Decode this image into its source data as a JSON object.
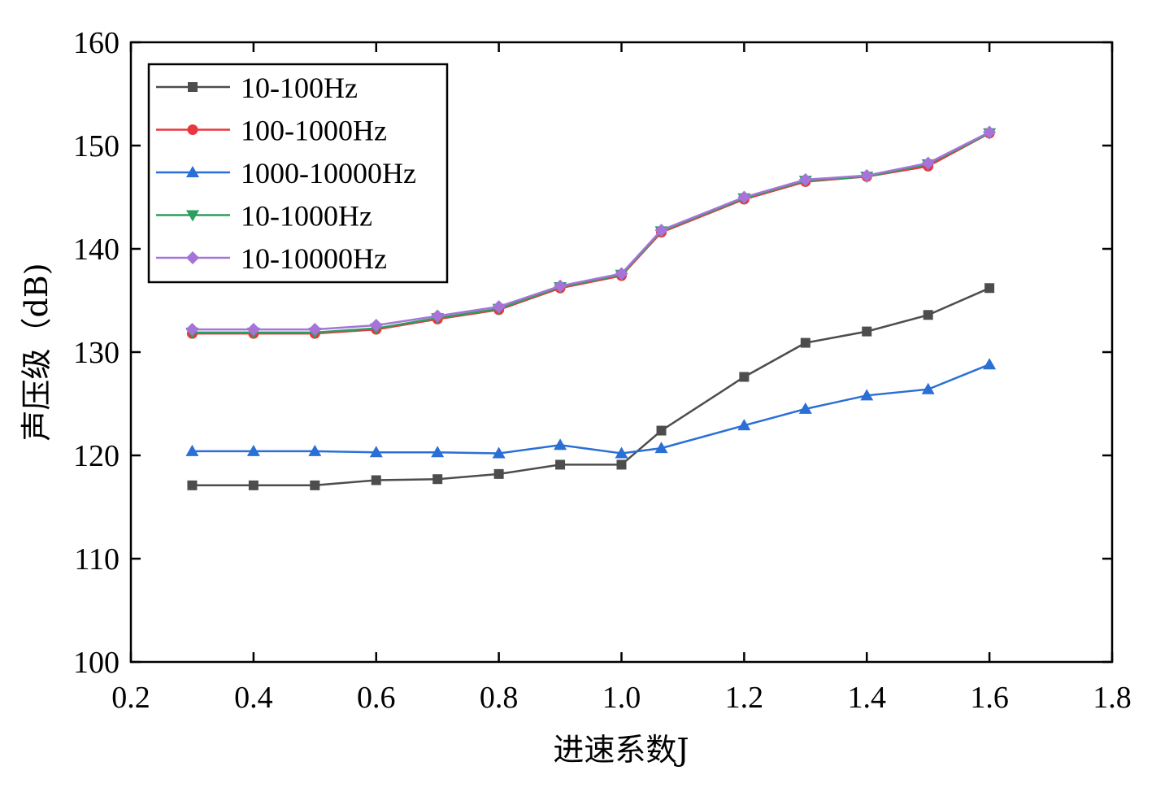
{
  "chart_data": {
    "type": "line",
    "title": "",
    "xlabel": "进速系数J",
    "ylabel": "声压级（dB)",
    "xlim": [
      0.2,
      1.8
    ],
    "ylim": [
      100,
      160
    ],
    "xticks": [
      "0.2",
      "0.4",
      "0.6",
      "0.8",
      "1.0",
      "1.2",
      "1.4",
      "1.6",
      "1.8"
    ],
    "yticks": [
      "100",
      "110",
      "120",
      "130",
      "140",
      "150",
      "160"
    ],
    "legend_position": "top-left",
    "grid": false,
    "x": [
      0.3,
      0.4,
      0.5,
      0.6,
      0.7,
      0.8,
      0.9,
      1.0,
      1.065,
      1.2,
      1.3,
      1.4,
      1.5,
      1.6
    ],
    "series": [
      {
        "name": "10-100Hz",
        "color": "#4d4d4d",
        "marker": "square",
        "values": [
          117.1,
          117.1,
          117.1,
          117.6,
          117.7,
          118.2,
          119.1,
          119.1,
          122.4,
          127.6,
          130.9,
          132.0,
          133.6,
          136.2
        ]
      },
      {
        "name": "100-1000Hz",
        "color": "#e8373f",
        "marker": "circle",
        "values": [
          131.8,
          131.8,
          131.8,
          132.2,
          133.2,
          134.1,
          136.2,
          137.4,
          141.6,
          144.8,
          146.5,
          147.0,
          148.0,
          151.2
        ]
      },
      {
        "name": "1000-10000Hz",
        "color": "#2a6fd6",
        "marker": "triangle-up",
        "values": [
          120.4,
          120.4,
          120.4,
          120.3,
          120.3,
          120.2,
          121.0,
          120.2,
          120.7,
          122.9,
          124.5,
          125.8,
          126.4,
          128.8
        ]
      },
      {
        "name": "10-1000Hz",
        "color": "#2e9e5e",
        "marker": "triangle-down",
        "values": [
          131.9,
          131.9,
          131.9,
          132.3,
          133.3,
          134.2,
          136.3,
          137.5,
          141.7,
          144.9,
          146.6,
          147.0,
          148.2,
          151.2
        ]
      },
      {
        "name": "10-10000Hz",
        "color": "#a673d8",
        "marker": "diamond",
        "values": [
          132.2,
          132.2,
          132.2,
          132.6,
          133.5,
          134.4,
          136.4,
          137.6,
          141.8,
          145.0,
          146.7,
          147.1,
          148.3,
          151.3
        ]
      }
    ]
  }
}
